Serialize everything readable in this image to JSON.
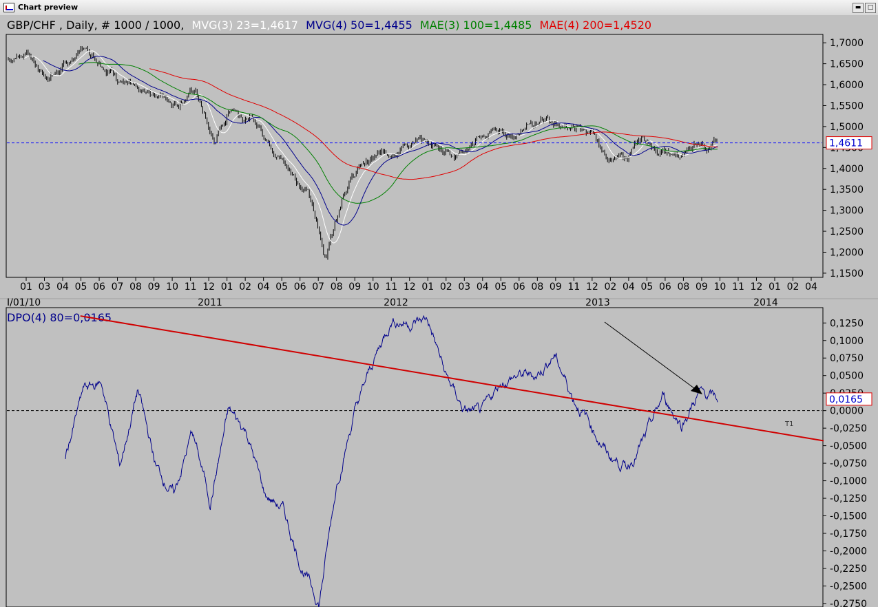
{
  "window": {
    "title": "Chart preview",
    "buttons": [
      "minimize",
      "maximize"
    ]
  },
  "price_panel": {
    "header": {
      "symbol": "GBP/CHF , Daily, # 1000 / 1000,",
      "indicators": [
        {
          "label": "MVG(3) 23=1,4617",
          "color": "#ffffff"
        },
        {
          "label": "MVG(4) 50=1,4455",
          "color": "#00008b"
        },
        {
          "label": "MAE(3) 100=1,4485",
          "color": "#008000"
        },
        {
          "label": "MAE(4) 200=1,4520",
          "color": "#e00000"
        }
      ]
    },
    "y_ticks": [
      "1,7000",
      "1,6500",
      "1,6000",
      "1,5500",
      "1,5000",
      "1,4500",
      "1,4000",
      "1,3500",
      "1,3000",
      "1,2500",
      "1,2000",
      "1,1500"
    ],
    "last_value": "1,4611",
    "month_ticks": [
      "01",
      "03",
      "04",
      "05",
      "06",
      "07",
      "08",
      "09",
      "10",
      "11",
      "12",
      "01",
      "02",
      "04",
      "05",
      "06",
      "07",
      "08",
      "09",
      "10",
      "11",
      "12",
      "01",
      "02",
      "03",
      "04",
      "05",
      "06",
      "08",
      "09",
      "11",
      "12",
      "02",
      "04",
      "05",
      "06",
      "08",
      "09",
      "10",
      "11",
      "12",
      "01",
      "02",
      "04"
    ],
    "year_ticks": [
      "I/01/10",
      "2011",
      "2012",
      "2013",
      "2014"
    ]
  },
  "osc_panel": {
    "header": {
      "label": "DPO(4) 80=0,0165",
      "color": "#00008b"
    },
    "y_ticks": [
      "0,1250",
      "0,1000",
      "0,0750",
      "0,0500",
      "0,0250",
      "0,0000",
      "-0,0250",
      "-0,0500",
      "-0,0750",
      "-0,1000",
      "-0,1250",
      "-0,1500",
      "-0,1750",
      "-0,2000",
      "-0,2250",
      "-0,2500",
      "-0,2750"
    ],
    "last_value": "0,0165",
    "trendline_label": "T1"
  },
  "chart_data": [
    {
      "type": "candlestick",
      "title": "GBP/CHF , Daily",
      "ylim": [
        1.14,
        1.72
      ],
      "reference_line": 1.4611,
      "series": [
        {
          "name": "GBP/CHF",
          "color": "#000000",
          "x": [
            "2010-01",
            "2010-03",
            "2010-04",
            "2010-05",
            "2010-06",
            "2010-07",
            "2010-08",
            "2010-09",
            "2010-10",
            "2010-11",
            "2010-12",
            "2011-01",
            "2011-02",
            "2011-04",
            "2011-05",
            "2011-06",
            "2011-07",
            "2011-08",
            "2011-09",
            "2011-10",
            "2011-11",
            "2011-12",
            "2012-01",
            "2012-02",
            "2012-03",
            "2012-04",
            "2012-05",
            "2012-06",
            "2012-08",
            "2012-09",
            "2012-11",
            "2012-12",
            "2013-02",
            "2013-04",
            "2013-05",
            "2013-06",
            "2013-08",
            "2013-09",
            "2013-10"
          ],
          "values": [
            1.66,
            1.68,
            1.62,
            1.64,
            1.69,
            1.66,
            1.62,
            1.57,
            1.58,
            1.56,
            1.59,
            1.46,
            1.55,
            1.52,
            1.47,
            1.4,
            1.35,
            1.19,
            1.36,
            1.41,
            1.43,
            1.46,
            1.46,
            1.45,
            1.44,
            1.46,
            1.49,
            1.47,
            1.52,
            1.51,
            1.5,
            1.49,
            1.43,
            1.42,
            1.47,
            1.44,
            1.42,
            1.47,
            1.46
          ]
        },
        {
          "name": "MVG(3) 23",
          "color": "#ffffff"
        },
        {
          "name": "MVG(4) 50",
          "color": "#00008b"
        },
        {
          "name": "MAE(3) 100",
          "color": "#008000"
        },
        {
          "name": "MAE(4) 200",
          "color": "#e00000"
        }
      ]
    },
    {
      "type": "line",
      "title": "DPO(4) 80",
      "ylim": [
        -0.28,
        0.14
      ],
      "series": [
        {
          "name": "DPO(4) 80",
          "color": "#00008b",
          "x": [
            "2010-03",
            "2010-05",
            "2010-06",
            "2010-07",
            "2010-08",
            "2010-09",
            "2010-10",
            "2010-12",
            "2011-01",
            "2011-02",
            "2011-04",
            "2011-06",
            "2011-07",
            "2011-08",
            "2011-08b",
            "2011-09",
            "2011-09b",
            "2011-10",
            "2011-11",
            "2011-12",
            "2012-01",
            "2012-02",
            "2012-03",
            "2012-04",
            "2012-05",
            "2012-06",
            "2012-08",
            "2012-09",
            "2012-11",
            "2012-12",
            "2013-02",
            "2013-04",
            "2013-05",
            "2013-06",
            "2013-08",
            "2013-09",
            "2013-10"
          ],
          "values": [
            -0.065,
            0.03,
            0.04,
            -0.08,
            0.03,
            -0.08,
            -0.12,
            -0.03,
            -0.13,
            0.0,
            -0.03,
            -0.12,
            -0.14,
            -0.22,
            -0.275,
            -0.1,
            0.0,
            0.07,
            0.13,
            0.125,
            0.13,
            0.05,
            0.0,
            -0.005,
            0.04,
            0.05,
            0.05,
            0.08,
            0.02,
            -0.02,
            -0.065,
            -0.08,
            -0.04,
            0.02,
            -0.02,
            0.025,
            0.016
          ]
        }
      ],
      "trendline": {
        "name": "T1",
        "from": [
          0.09,
          0.135
        ],
        "to": [
          1.0,
          -0.043
        ],
        "color": "#d00000"
      },
      "zero_line": 0.0
    }
  ]
}
